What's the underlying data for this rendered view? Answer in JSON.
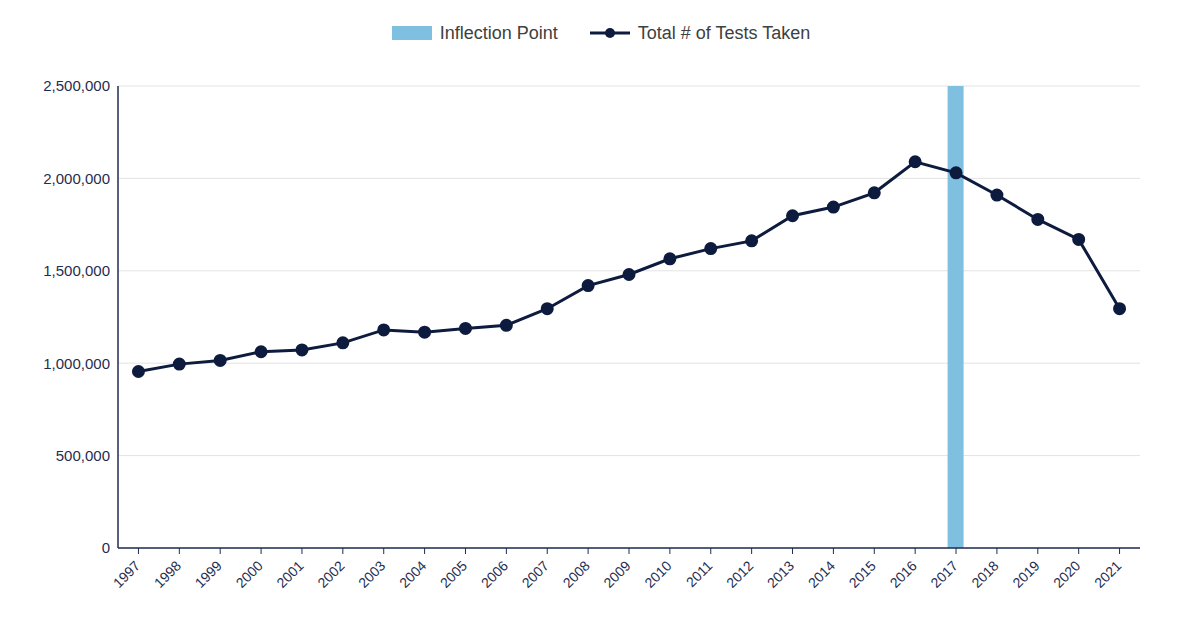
{
  "chart_data": {
    "type": "line",
    "categories": [
      "1997",
      "1998",
      "1999",
      "2000",
      "2001",
      "2002",
      "2003",
      "2004",
      "2005",
      "2006",
      "2007",
      "2008",
      "2009",
      "2010",
      "2011",
      "2012",
      "2013",
      "2014",
      "2015",
      "2016",
      "2017",
      "2018",
      "2019",
      "2020",
      "2021"
    ],
    "series": [
      {
        "name": "Inflection Point",
        "type": "bar",
        "color": "#7fbfdf",
        "values": [
          null,
          null,
          null,
          null,
          null,
          null,
          null,
          null,
          null,
          null,
          null,
          null,
          null,
          null,
          null,
          null,
          null,
          null,
          null,
          null,
          2500000,
          null,
          null,
          null,
          null
        ]
      },
      {
        "name": "Total # of Tests Taken",
        "type": "line",
        "color": "#0d1b3e",
        "marker": "circle",
        "values": [
          955000,
          995000,
          1015000,
          1062000,
          1072000,
          1110000,
          1180000,
          1168000,
          1188000,
          1205000,
          1295000,
          1420000,
          1480000,
          1565000,
          1620000,
          1662000,
          1798000,
          1845000,
          1922000,
          2090000,
          2030000,
          1910000,
          1778000,
          1670000,
          1295000
        ]
      }
    ],
    "ylim": [
      0,
      2500000
    ],
    "yticks": [
      0,
      {
        "value": 500000,
        "label": "500,000"
      },
      {
        "value": 1000000,
        "label": "1,000,000"
      },
      {
        "value": 1500000,
        "label": "1,500,000"
      },
      {
        "value": 2000000,
        "label": "2,000,000"
      },
      {
        "value": 2500000,
        "label": "2,500,000"
      }
    ],
    "grid": true,
    "legend": "top"
  }
}
